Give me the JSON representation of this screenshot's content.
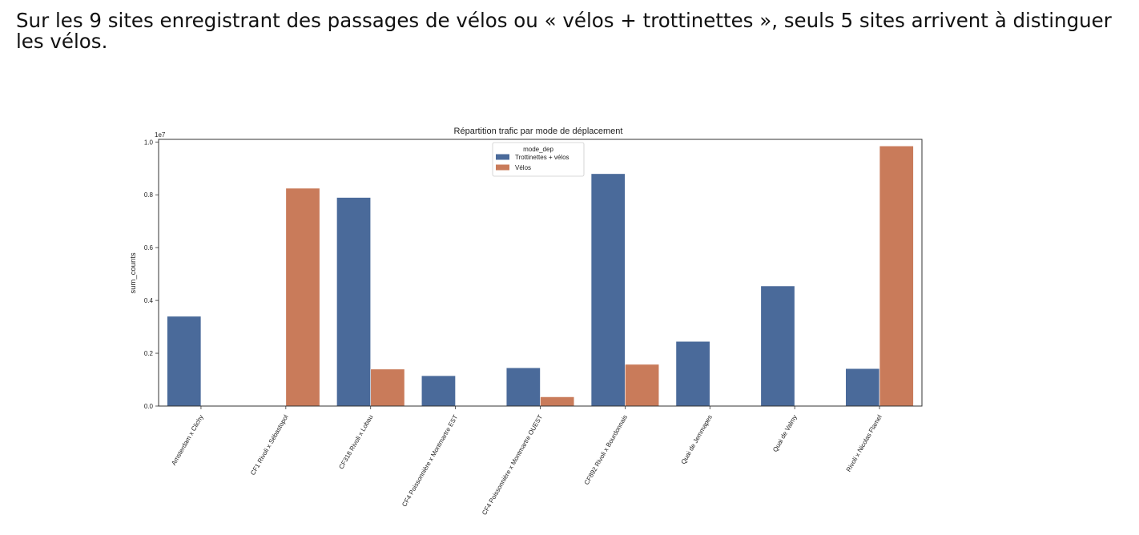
{
  "heading": "Sur les 9 sites enregistrant des passages de vélos ou « vélos + trottinettes », seuls 5 sites arrivent à distinguer les vélos.",
  "chart_data": {
    "type": "bar",
    "title": "Répartition trafic par mode de déplacement",
    "xlabel": "",
    "ylabel": "sum_counts",
    "y_offset_text": "1e7",
    "ylim": [
      0,
      1.01
    ],
    "yticks": [
      "0.0",
      "0.2",
      "0.4",
      "0.6",
      "0.8",
      "1.0"
    ],
    "legend_title": "mode_dep",
    "legend_position": "top-center",
    "categories": [
      "Amsterdam x Clichy",
      "CF1 Rivoli x Sébastopol",
      "CF318 Rivoli x Lobau",
      "CF4 Poissonnière x Montmartre EST",
      "CF4 Poissonnière x Montmartre OUEST",
      "CF892 Rivoli x Bourdonnais",
      "Quai de Jemmapes",
      "Quai de Valmy",
      "Rivoli x Nicolas Flamel"
    ],
    "series": [
      {
        "name": "Trottinettes + vélos",
        "color": "#4a6a9a",
        "values": [
          0.34,
          null,
          0.79,
          0.115,
          0.145,
          0.88,
          0.245,
          0.455,
          0.142
        ]
      },
      {
        "name": "Vélos",
        "color": "#c97b5a",
        "values": [
          null,
          0.825,
          0.14,
          null,
          0.035,
          0.158,
          null,
          null,
          0.985
        ]
      }
    ],
    "grid": false
  }
}
